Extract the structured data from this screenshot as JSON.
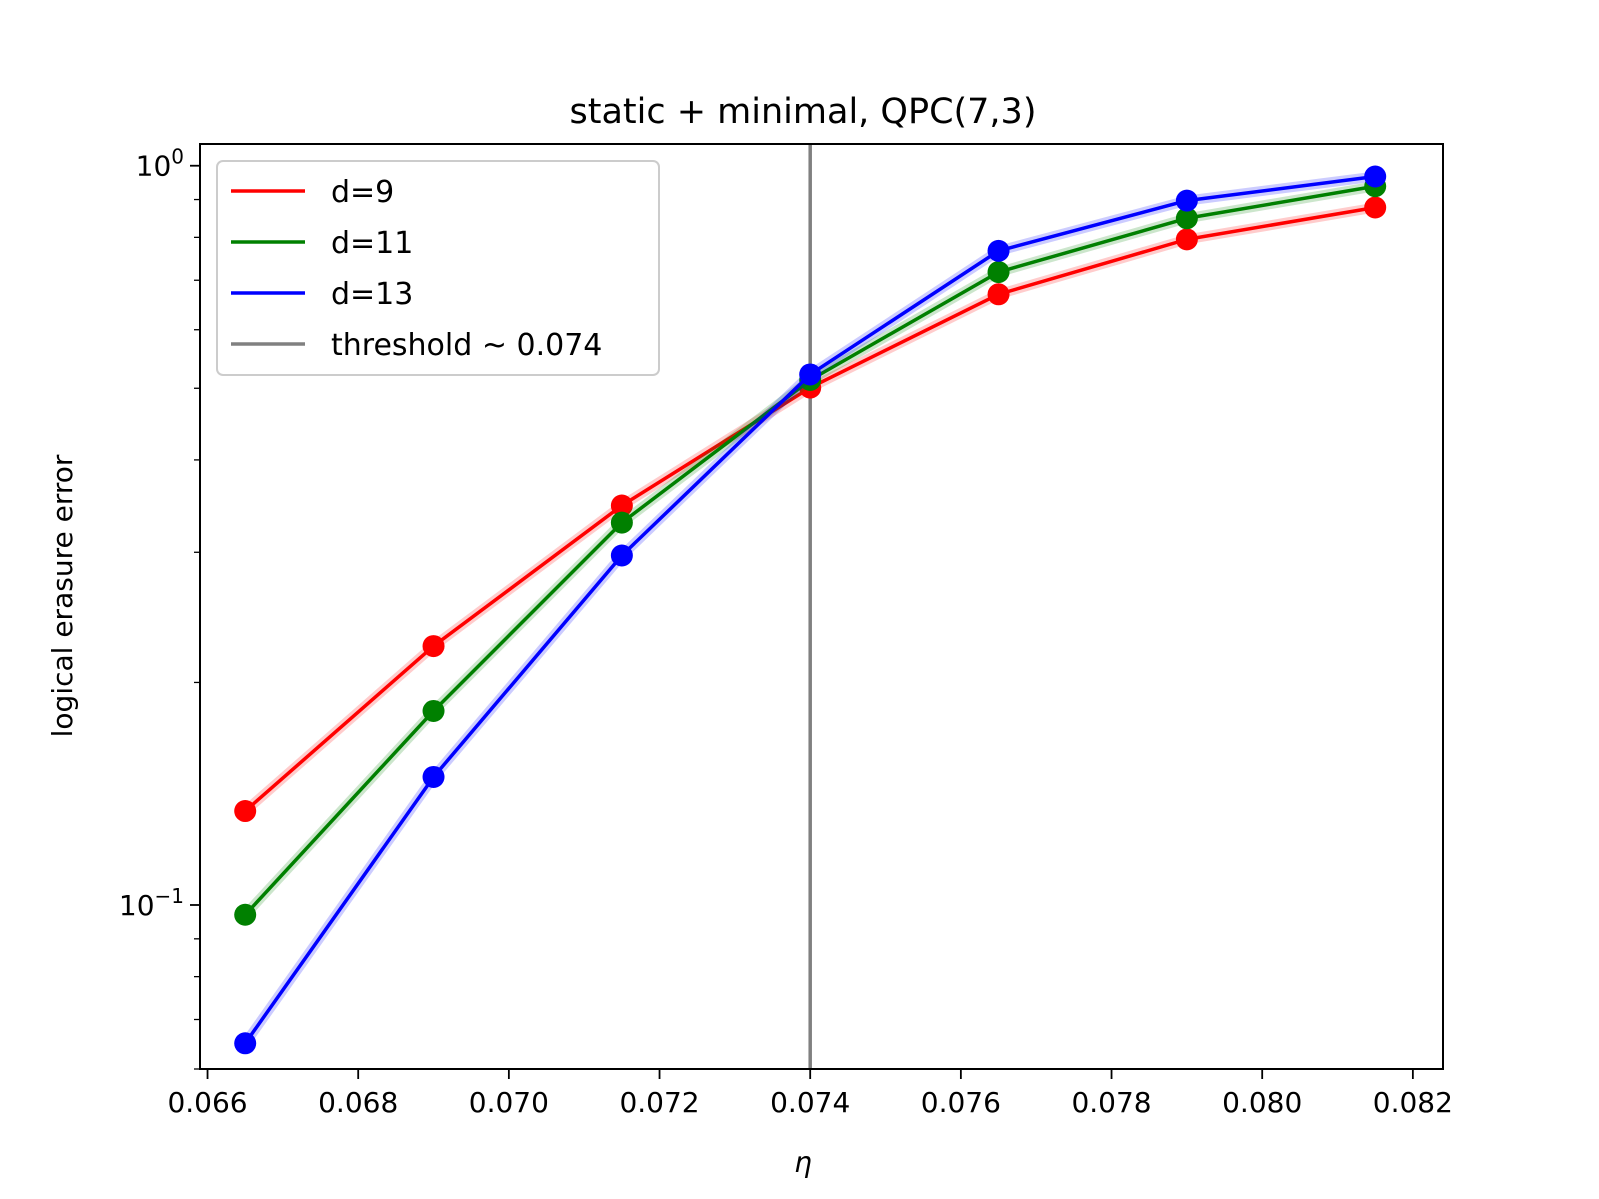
{
  "chart_data": {
    "type": "line",
    "title": "static + minimal, QPC(7,3)",
    "xlabel": "η",
    "ylabel": "logical erasure error",
    "x": [
      0.0665,
      0.069,
      0.0715,
      0.074,
      0.0765,
      0.079,
      0.0815
    ],
    "series": [
      {
        "name": "d=9",
        "color": "#ff0000",
        "values": [
          0.134,
          0.224,
          0.347,
          0.501,
          0.67,
          0.795,
          0.878
        ]
      },
      {
        "name": "d=11",
        "color": "#008000",
        "values": [
          0.097,
          0.183,
          0.329,
          0.513,
          0.718,
          0.849,
          0.938
        ]
      },
      {
        "name": "d=13",
        "color": "#0000ff",
        "values": [
          0.065,
          0.149,
          0.297,
          0.522,
          0.767,
          0.897,
          0.967
        ]
      }
    ],
    "threshold": {
      "name": "threshold ~ 0.074",
      "x": 0.074,
      "color": "#808080"
    },
    "xlim": [
      0.0659,
      0.0824
    ],
    "ylim": [
      0.06,
      1.07
    ],
    "yscale": "log",
    "xticks": [
      0.066,
      0.068,
      0.07,
      0.072,
      0.074,
      0.076,
      0.078,
      0.08,
      0.082
    ],
    "xtick_labels": [
      "0.066",
      "0.068",
      "0.070",
      "0.072",
      "0.074",
      "0.076",
      "0.078",
      "0.080",
      "0.082"
    ],
    "yticks": [
      0.1,
      1.0
    ],
    "ytick_labels": [
      {
        "base": "10",
        "exp": "−1"
      },
      {
        "base": "10",
        "exp": "0"
      }
    ],
    "legend_position": "upper-left",
    "grid": false
  }
}
